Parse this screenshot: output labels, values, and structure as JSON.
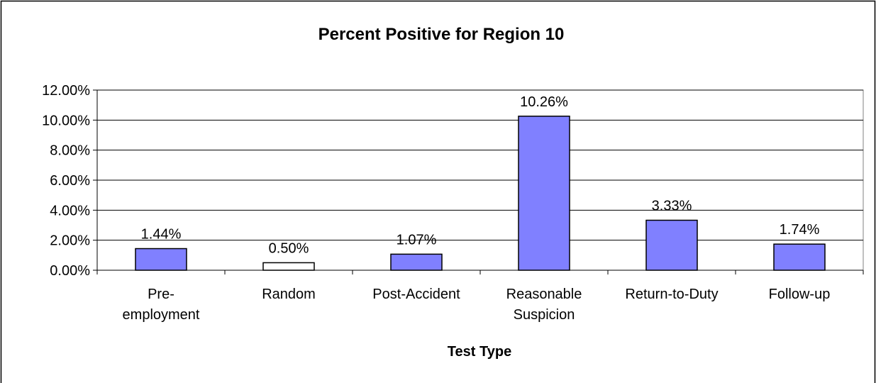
{
  "chart_data": {
    "type": "bar",
    "title": "Percent Positive for Region 10",
    "xlabel": "Test Type",
    "ylabel": "",
    "ylim": [
      0,
      0.12
    ],
    "y_ticks": [
      0,
      0.02,
      0.04,
      0.06,
      0.08,
      0.1,
      0.12
    ],
    "y_tick_labels": [
      "0.00%",
      "2.00%",
      "4.00%",
      "6.00%",
      "8.00%",
      "10.00%",
      "12.00%"
    ],
    "categories": [
      [
        "Pre-",
        "employment"
      ],
      [
        "Random"
      ],
      [
        "Post-Accident"
      ],
      [
        "Reasonable",
        "Suspicion"
      ],
      [
        "Return-to-Duty"
      ],
      [
        "Follow-up"
      ]
    ],
    "values": [
      0.0144,
      0.005,
      0.0107,
      0.1026,
      0.0333,
      0.0174
    ],
    "data_labels": [
      "1.44%",
      "0.50%",
      "1.07%",
      "10.26%",
      "3.33%",
      "1.74%"
    ],
    "bar_colors": [
      "#8080FF",
      "#FFFFFF",
      "#8080FF",
      "#8080FF",
      "#8080FF",
      "#8080FF"
    ],
    "grid": true,
    "legend": "none"
  }
}
